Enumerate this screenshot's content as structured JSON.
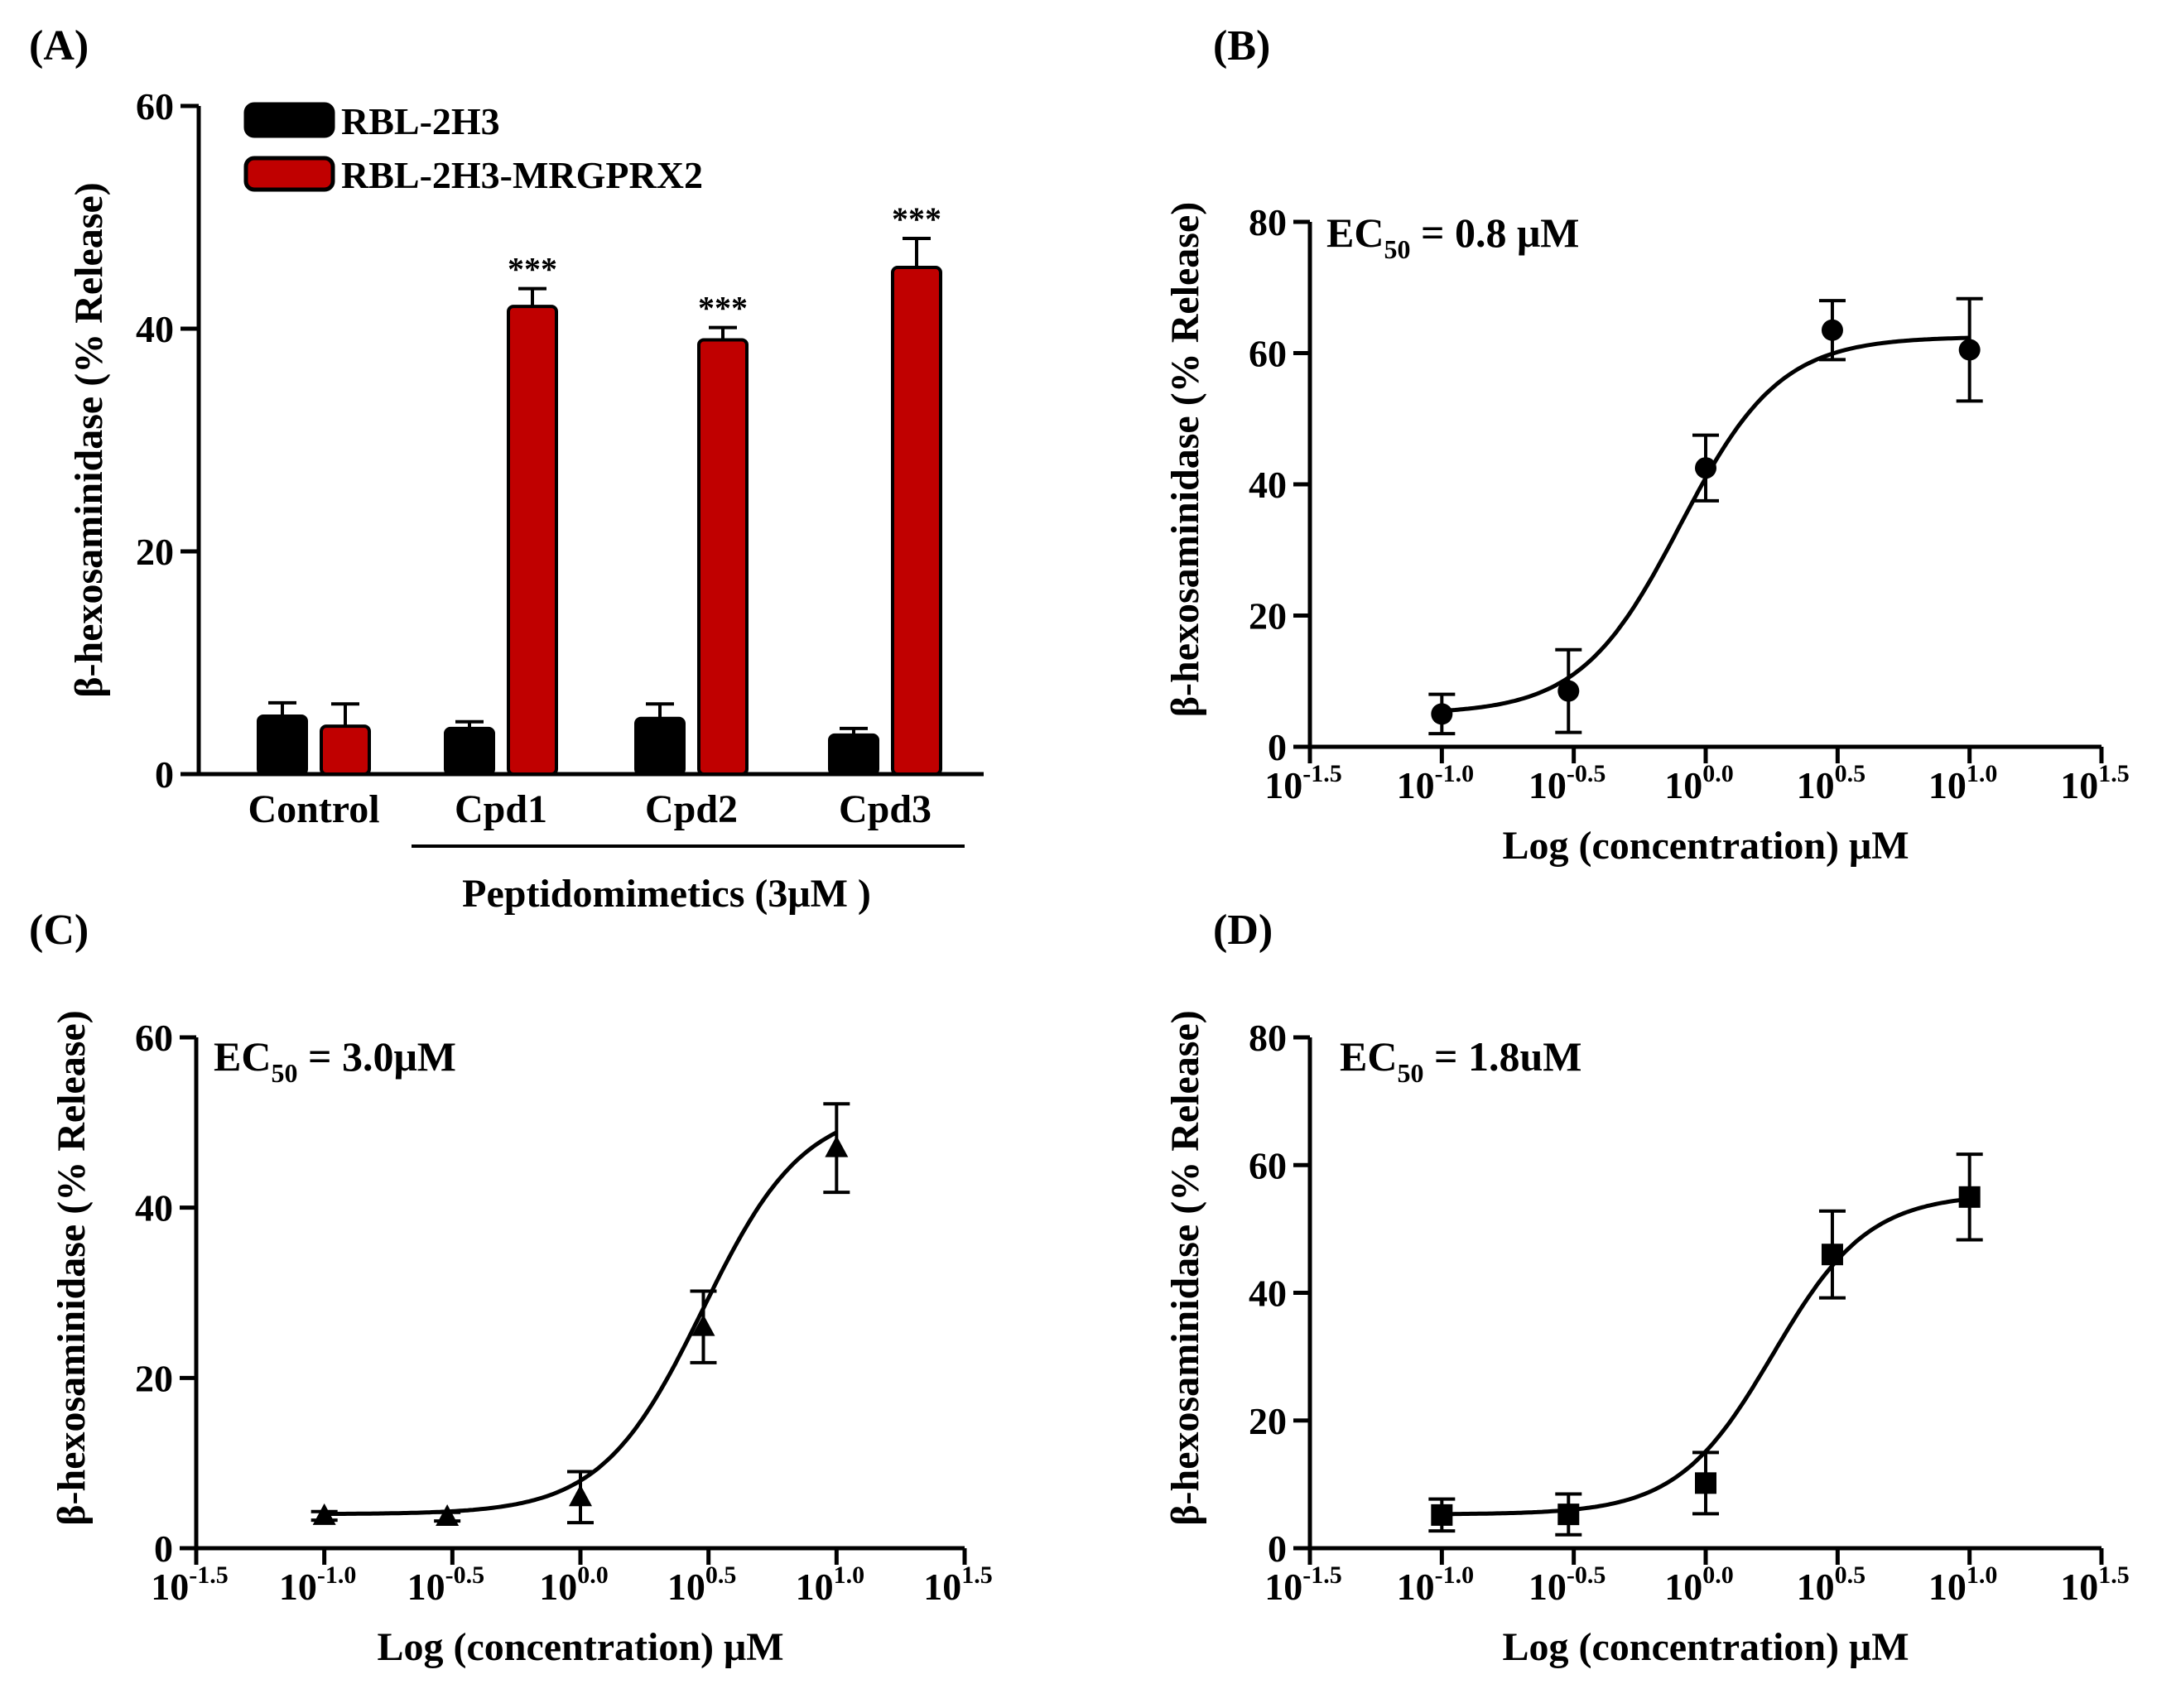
{
  "chart_data": [
    {
      "panel": "(A)",
      "type": "bar",
      "ylabel": "β-hexosaminidase (% Release)",
      "xlabel": "Peptidomimetics (3μM )",
      "ylim": [
        0,
        60
      ],
      "yticks": [
        "0",
        "20",
        "40",
        "60"
      ],
      "categories": [
        "Control",
        "Cpd1",
        "Cpd2",
        "Cpd3"
      ],
      "series": [
        {
          "name": "RBL-2H3",
          "color": "#000000",
          "values": [
            5.2,
            4.1,
            5.0,
            3.5
          ],
          "errors": [
            1.2,
            0.6,
            1.3,
            0.6
          ]
        },
        {
          "name": "RBL-2H3-MRGPRX2",
          "color": "#c00000",
          "values": [
            4.3,
            42.0,
            39.0,
            45.5
          ],
          "errors": [
            2.0,
            1.6,
            1.1,
            2.6
          ]
        }
      ],
      "annotations": [
        "",
        "***",
        "***",
        "***"
      ],
      "bracket_categories": [
        "Cpd1",
        "Cpd2",
        "Cpd3"
      ]
    },
    {
      "panel": "(B)",
      "type": "scatter",
      "marker": "circle",
      "ec50_label": "EC",
      "ec50_sub": "50",
      "ec50_value": " = 0.8 μM",
      "ec50": 0.8,
      "ylim": [
        0,
        80
      ],
      "yticks": [
        "0",
        "20",
        "40",
        "60",
        "80"
      ],
      "xlim": [
        -1.5,
        1.5
      ],
      "xticks": [
        {
          "base": "10",
          "exp": "-1.5"
        },
        {
          "base": "10",
          "exp": "-1.0"
        },
        {
          "base": "10",
          "exp": "-0.5"
        },
        {
          "base": "10",
          "exp": "0.0"
        },
        {
          "base": "10",
          "exp": "0.5"
        },
        {
          "base": "10",
          "exp": "1.0"
        },
        {
          "base": "10",
          "exp": "1.5"
        }
      ],
      "xlabel": "Log (concentration) μM",
      "ylabel": "β-hexosaminidase (% Release)",
      "x": [
        -1.0,
        -0.52,
        0.0,
        0.48,
        1.0
      ],
      "y": [
        5.0,
        8.5,
        42.5,
        63.5,
        60.5
      ],
      "errors": [
        3.0,
        6.3,
        5.0,
        4.5,
        7.8
      ],
      "fit": {
        "bottom": 5.0,
        "top": 62.5,
        "logEC50": -0.097,
        "hill": 2.3
      }
    },
    {
      "panel": "(C)",
      "type": "scatter",
      "marker": "triangle",
      "ec50_label": "EC",
      "ec50_sub": "50",
      "ec50_value": " = 3.0μM",
      "ec50": 3.0,
      "ylim": [
        0,
        60
      ],
      "yticks": [
        "0",
        "20",
        "40",
        "60"
      ],
      "xlim": [
        -1.5,
        1.5
      ],
      "xticks": [
        {
          "base": "10",
          "exp": "-1.5"
        },
        {
          "base": "10",
          "exp": "-1.0"
        },
        {
          "base": "10",
          "exp": "-0.5"
        },
        {
          "base": "10",
          "exp": "0.0"
        },
        {
          "base": "10",
          "exp": "0.5"
        },
        {
          "base": "10",
          "exp": "1.0"
        },
        {
          "base": "10",
          "exp": "1.5"
        }
      ],
      "xlabel": "Log (concentration) μM",
      "ylabel": "β-hexosaminidase (% Release)",
      "x": [
        -1.0,
        -0.52,
        0.0,
        0.48,
        1.0
      ],
      "y": [
        3.8,
        3.7,
        6.0,
        26.0,
        47.0
      ],
      "errors": [
        0.5,
        0.5,
        3.0,
        4.2,
        5.2
      ],
      "fit": {
        "bottom": 4.0,
        "top": 52.0,
        "logEC50": 0.477,
        "hill": 2.2
      }
    },
    {
      "panel": "(D)",
      "type": "scatter",
      "marker": "square",
      "ec50_label": "EC",
      "ec50_sub": "50",
      "ec50_value": " = 1.8uM",
      "ec50": 1.8,
      "ylim": [
        0,
        80
      ],
      "yticks": [
        "0",
        "20",
        "40",
        "60",
        "80"
      ],
      "xlim": [
        -1.5,
        1.5
      ],
      "xticks": [
        {
          "base": "10",
          "exp": "-1.5"
        },
        {
          "base": "10",
          "exp": "-1.0"
        },
        {
          "base": "10",
          "exp": "-0.5"
        },
        {
          "base": "10",
          "exp": "0.0"
        },
        {
          "base": "10",
          "exp": "0.5"
        },
        {
          "base": "10",
          "exp": "1.0"
        },
        {
          "base": "10",
          "exp": "1.5"
        }
      ],
      "xlabel": "Log (concentration) μM",
      "ylabel": "β-hexosaminidase (% Release)",
      "x": [
        -1.0,
        -0.52,
        0.0,
        0.48,
        1.0
      ],
      "y": [
        5.2,
        5.3,
        10.2,
        46.0,
        55.0
      ],
      "errors": [
        2.5,
        3.2,
        4.8,
        6.8,
        6.7
      ],
      "fit": {
        "bottom": 5.3,
        "top": 55.5,
        "logEC50": 0.255,
        "hill": 2.4
      }
    }
  ]
}
